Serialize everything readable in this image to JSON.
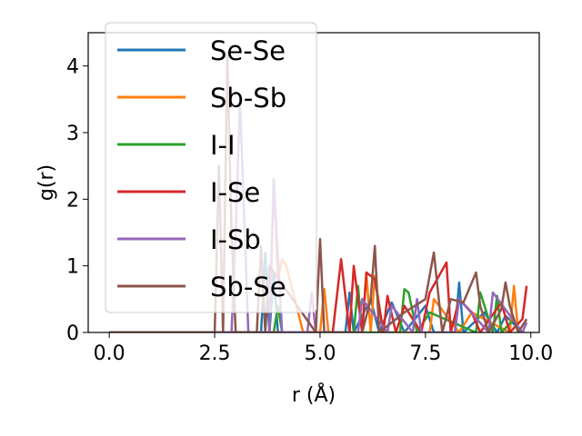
{
  "chart_data": {
    "type": "line",
    "title": "",
    "xlabel": "r (Å)",
    "ylabel": "g(r)",
    "xlim": [
      -0.5,
      10.2
    ],
    "ylim": [
      0,
      4.5
    ],
    "xticks": [
      "0.0",
      "2.5",
      "5.0",
      "7.5",
      "10.0"
    ],
    "xtick_values": [
      0,
      2.5,
      5.0,
      7.5,
      10.0
    ],
    "yticks": [
      "0",
      "1",
      "2",
      "3",
      "4"
    ],
    "ytick_values": [
      0,
      1,
      2,
      3,
      4
    ],
    "grid": false,
    "legend_position": "upper-left",
    "series": [
      {
        "name": "Se-Se",
        "color": "#1f77b4",
        "x": [
          0,
          2.5,
          3.6,
          3.7,
          3.8,
          3.9,
          4.0,
          5.6,
          5.7,
          5.8,
          6.2,
          6.4,
          6.7,
          7.0,
          7.5,
          7.7,
          8.2,
          8.3,
          8.4,
          8.9,
          9.2,
          9.4,
          9.8
        ],
        "y": [
          0,
          0,
          0,
          1.2,
          0,
          0.9,
          0,
          0,
          0.6,
          0,
          0.5,
          0,
          0.45,
          0,
          0.4,
          0,
          0,
          0.75,
          0,
          0.3,
          0,
          0.25,
          0
        ]
      },
      {
        "name": "Sb-Sb",
        "color": "#ff7f0e",
        "x": [
          0,
          3.8,
          3.9,
          4.0,
          4.1,
          4.2,
          4.4,
          4.6,
          5.0,
          5.1,
          5.2,
          6.0,
          6.1,
          6.2,
          6.3,
          6.5,
          7.6,
          7.7,
          8.3,
          8.6,
          9.5,
          9.6,
          9.7
        ],
        "y": [
          0,
          0,
          2.3,
          0.8,
          1.1,
          1.0,
          0.5,
          0,
          0,
          0.65,
          0,
          0,
          0.9,
          0,
          0.85,
          0,
          0,
          0.5,
          0,
          0.3,
          0,
          0.7,
          0
        ]
      },
      {
        "name": "I-I",
        "color": "#2ca02c",
        "x": [
          0,
          3.9,
          4.0,
          4.1,
          5.8,
          5.9,
          6.0,
          6.9,
          7.0,
          7.1,
          7.3,
          7.6,
          8.7,
          8.8,
          9.1,
          9.2,
          9.3,
          9.6
        ],
        "y": [
          0,
          0,
          0.4,
          0,
          0,
          0.7,
          0,
          0,
          0.65,
          0.6,
          0,
          0.3,
          0,
          0.6,
          0,
          0.55,
          0,
          0.2
        ]
      },
      {
        "name": "I-Se",
        "color": "#d62728",
        "x": [
          0,
          5.3,
          5.5,
          5.7,
          5.8,
          6.0,
          6.1,
          6.3,
          6.5,
          6.6,
          6.8,
          7.0,
          7.4,
          7.6,
          8.0,
          8.1,
          8.3,
          8.6,
          8.8,
          9.3,
          9.5,
          9.8,
          9.9
        ],
        "y": [
          0,
          0,
          1.1,
          0,
          1.0,
          0,
          0.9,
          0.8,
          0,
          0.55,
          0,
          0.4,
          0,
          0.6,
          1.05,
          0,
          0.5,
          0.3,
          0,
          0.45,
          0,
          0.2,
          0.7
        ]
      },
      {
        "name": "I-Sb",
        "color": "#9467bd",
        "x": [
          0,
          2.9,
          3.0,
          3.1,
          3.3,
          3.8,
          3.9,
          4.1,
          4.7,
          4.8,
          4.9,
          5.9,
          6.0,
          6.6,
          6.7,
          7.2,
          7.3,
          7.4,
          8.2,
          8.3,
          9.0,
          9.1,
          9.8,
          9.9
        ],
        "y": [
          0,
          0,
          1.5,
          3.5,
          0,
          0,
          2.3,
          0,
          0,
          0.6,
          0,
          0,
          0.5,
          0,
          0.4,
          0,
          0.5,
          0,
          0,
          0.5,
          0,
          0.6,
          0,
          0.15
        ]
      },
      {
        "name": "Sb-Se",
        "color": "#8c564b",
        "x": [
          0,
          2.5,
          2.6,
          2.7,
          2.8,
          2.9,
          3.0,
          3.2,
          3.5,
          3.6,
          3.7,
          3.8,
          4.9,
          5.0,
          5.1,
          6.0,
          6.2,
          6.3,
          6.4,
          7.0,
          7.5,
          7.7,
          7.9,
          8.1,
          8.4,
          8.7,
          8.8,
          9.0,
          9.3,
          9.4,
          9.5,
          9.7,
          9.9
        ],
        "y": [
          0,
          0,
          2.5,
          0,
          4.2,
          1.5,
          0,
          0,
          0,
          1.3,
          0,
          1.0,
          0,
          1.4,
          0,
          0,
          0.5,
          1.3,
          0,
          0.3,
          0.5,
          1.2,
          0,
          0.5,
          0.45,
          0.9,
          0.4,
          0,
          0.35,
          0.75,
          0.4,
          0,
          0.2
        ]
      }
    ]
  }
}
